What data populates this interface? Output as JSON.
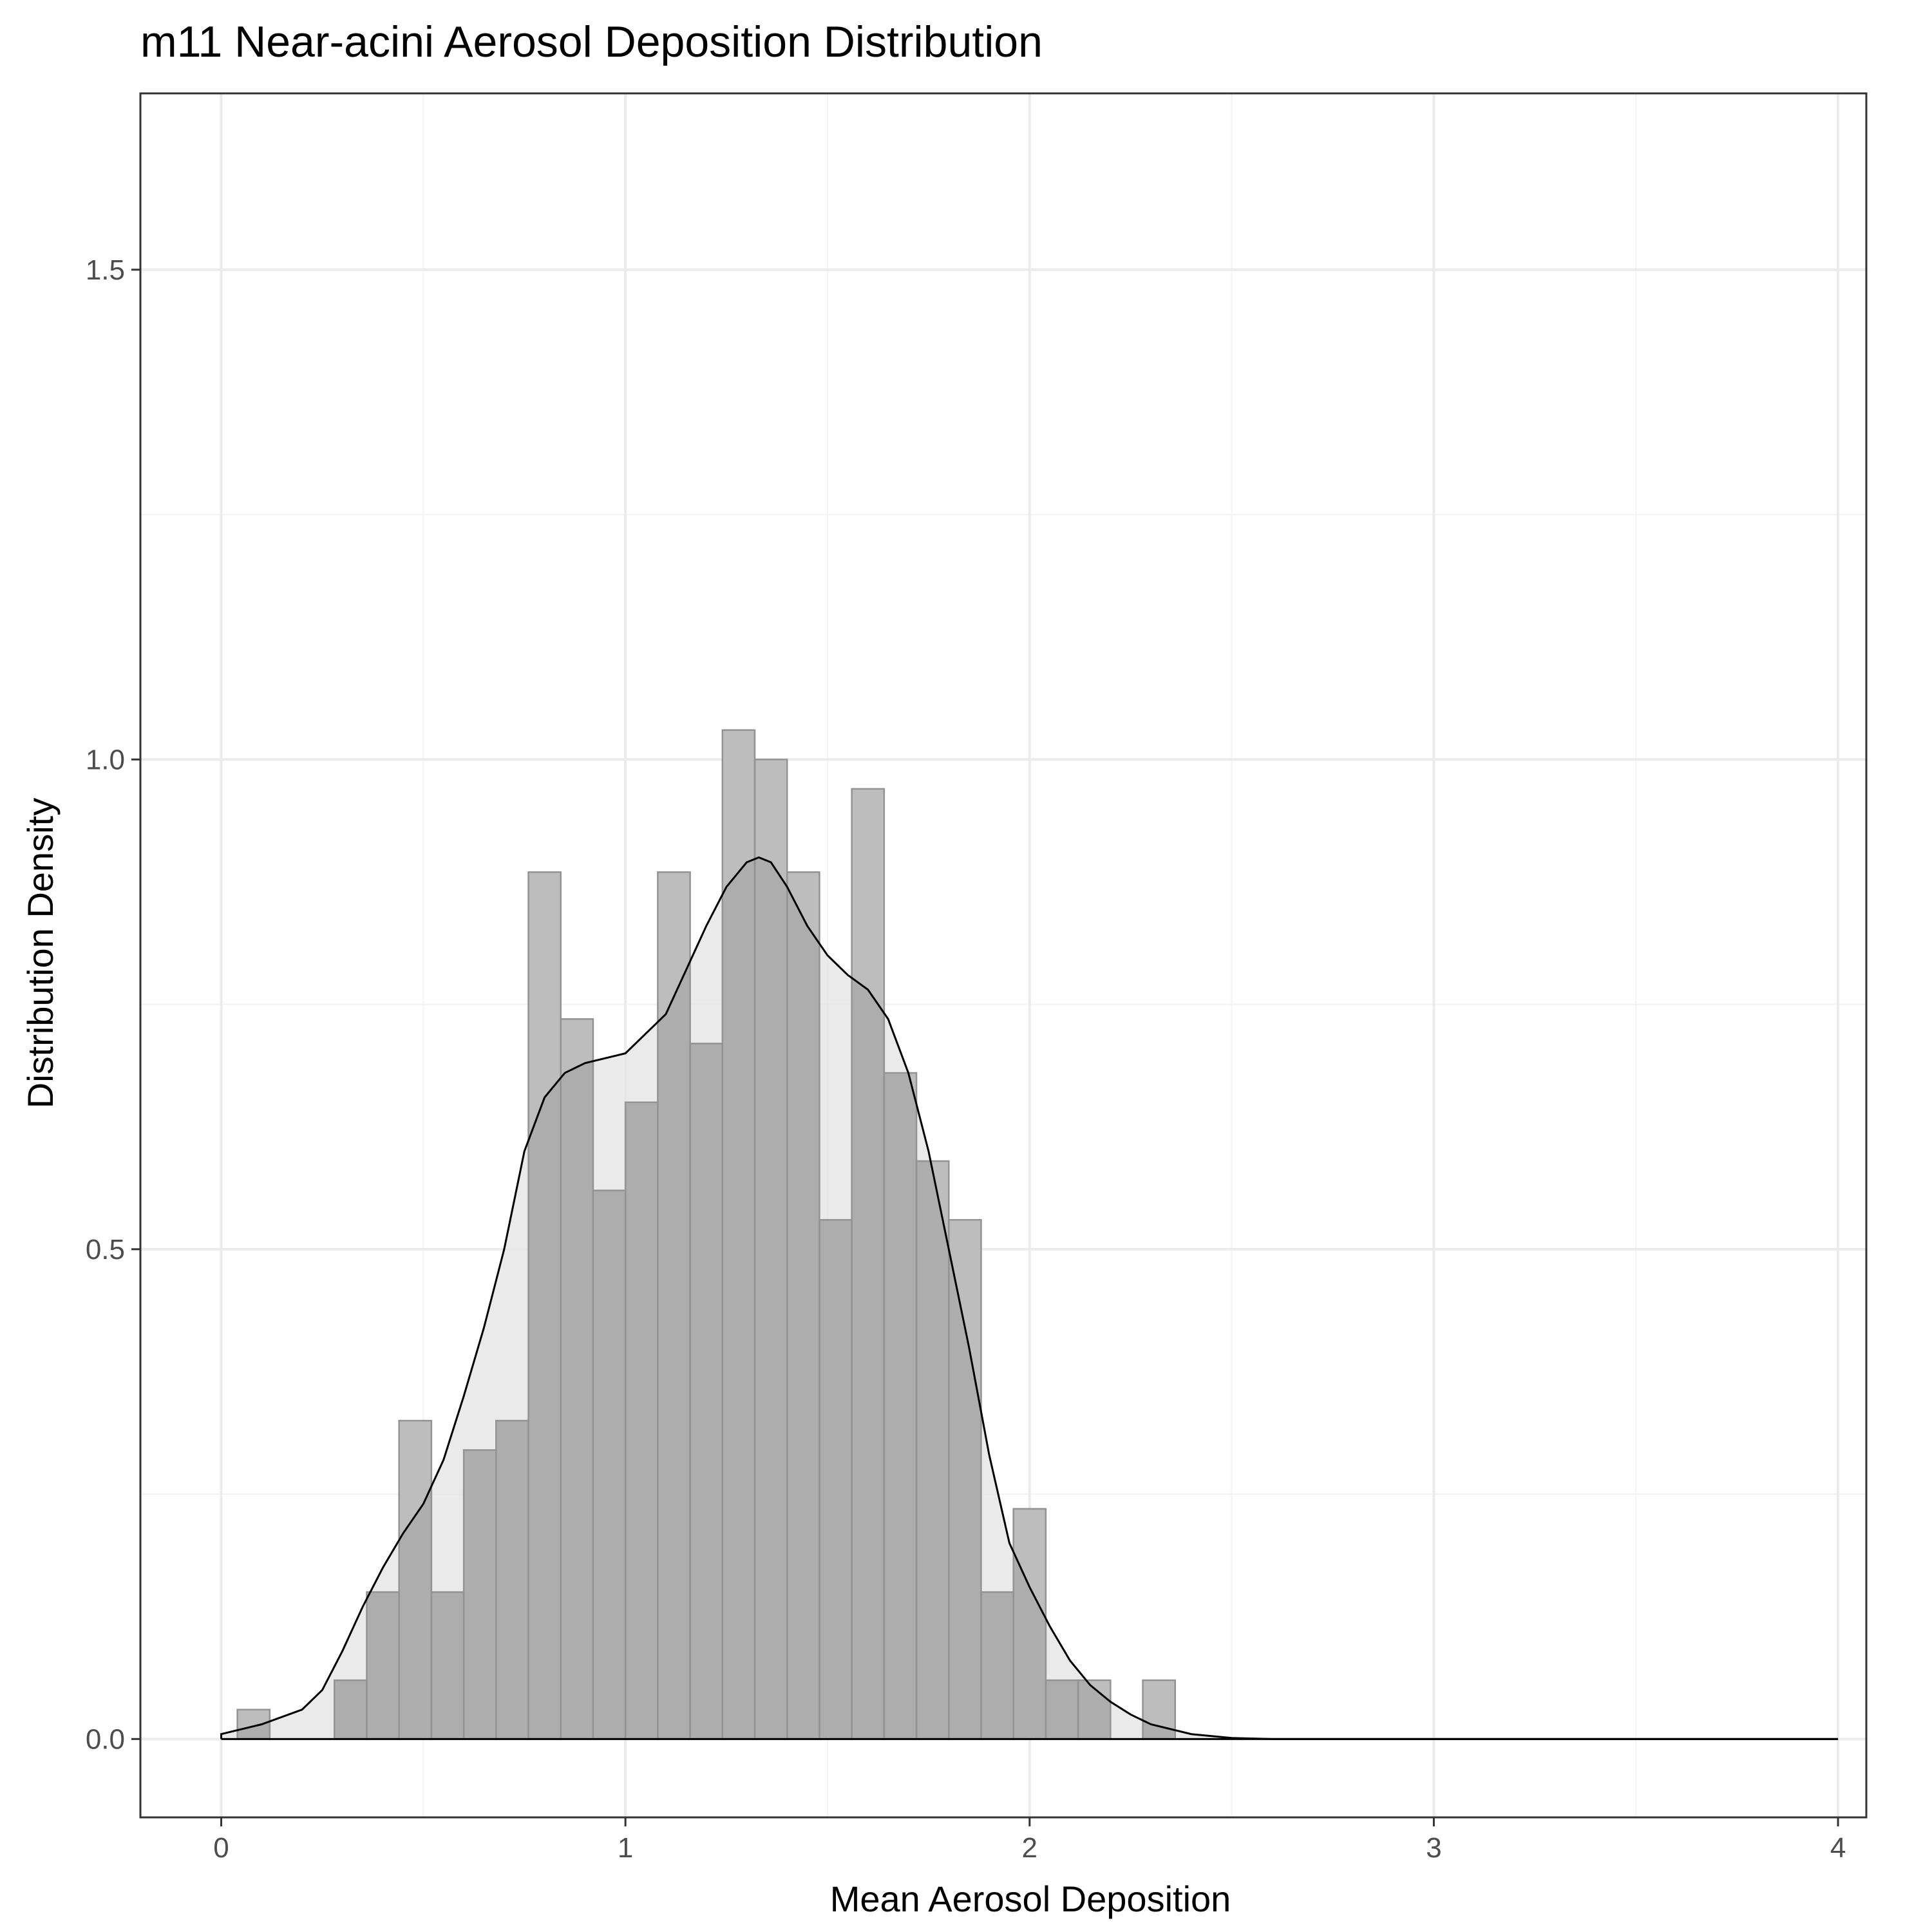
{
  "chart_data": {
    "type": "histogram",
    "title": "m11 Near-acini Aerosol Deposition Distribution",
    "xlabel": "Mean Aerosol Deposition",
    "ylabel": "Distribution Density",
    "xlim": [
      -0.2,
      4.07
    ],
    "ylim": [
      -0.08,
      1.68
    ],
    "x_ticks": [
      0,
      1,
      2,
      3,
      4
    ],
    "x_tick_labels": [
      "0",
      "1",
      "2",
      "3",
      "4"
    ],
    "y_ticks": [
      0.0,
      0.5,
      1.0,
      1.5
    ],
    "y_tick_labels": [
      "0.0",
      "0.5",
      "1.0",
      "1.5"
    ],
    "grid": true,
    "bin_width": 0.08,
    "bins": [
      {
        "x0": 0.04,
        "x1": 0.12,
        "density": 0.03
      },
      {
        "x0": 0.12,
        "x1": 0.2,
        "density": 0.0
      },
      {
        "x0": 0.2,
        "x1": 0.28,
        "density": 0.0
      },
      {
        "x0": 0.28,
        "x1": 0.36,
        "density": 0.06
      },
      {
        "x0": 0.36,
        "x1": 0.44,
        "density": 0.15
      },
      {
        "x0": 0.44,
        "x1": 0.52,
        "density": 0.325
      },
      {
        "x0": 0.52,
        "x1": 0.6,
        "density": 0.15
      },
      {
        "x0": 0.6,
        "x1": 0.68,
        "density": 0.295
      },
      {
        "x0": 0.68,
        "x1": 0.76,
        "density": 0.325
      },
      {
        "x0": 0.76,
        "x1": 0.84,
        "density": 0.885
      },
      {
        "x0": 0.84,
        "x1": 0.92,
        "density": 0.735
      },
      {
        "x0": 0.92,
        "x1": 1.0,
        "density": 0.56
      },
      {
        "x0": 1.0,
        "x1": 1.08,
        "density": 0.65
      },
      {
        "x0": 1.08,
        "x1": 1.16,
        "density": 0.885
      },
      {
        "x0": 1.16,
        "x1": 1.24,
        "density": 0.71
      },
      {
        "x0": 1.24,
        "x1": 1.32,
        "density": 1.03
      },
      {
        "x0": 1.32,
        "x1": 1.4,
        "density": 1.0
      },
      {
        "x0": 1.4,
        "x1": 1.48,
        "density": 0.885
      },
      {
        "x0": 1.48,
        "x1": 1.56,
        "density": 0.53
      },
      {
        "x0": 1.56,
        "x1": 1.64,
        "density": 0.97
      },
      {
        "x0": 1.64,
        "x1": 1.72,
        "density": 0.68
      },
      {
        "x0": 1.72,
        "x1": 1.8,
        "density": 0.59
      },
      {
        "x0": 1.8,
        "x1": 1.88,
        "density": 0.53
      },
      {
        "x0": 1.88,
        "x1": 1.96,
        "density": 0.15
      },
      {
        "x0": 1.96,
        "x1": 2.04,
        "density": 0.235
      },
      {
        "x0": 2.04,
        "x1": 2.12,
        "density": 0.06
      },
      {
        "x0": 2.12,
        "x1": 2.2,
        "density": 0.06
      },
      {
        "x0": 2.2,
        "x1": 2.28,
        "density": 0.0
      },
      {
        "x0": 2.28,
        "x1": 2.36,
        "density": 0.06
      }
    ],
    "density_curve": {
      "x": [
        0.0,
        0.1,
        0.2,
        0.25,
        0.3,
        0.35,
        0.4,
        0.45,
        0.5,
        0.55,
        0.6,
        0.65,
        0.7,
        0.75,
        0.8,
        0.85,
        0.9,
        0.95,
        1.0,
        1.05,
        1.1,
        1.15,
        1.2,
        1.25,
        1.3,
        1.33,
        1.36,
        1.4,
        1.45,
        1.5,
        1.55,
        1.6,
        1.65,
        1.7,
        1.75,
        1.8,
        1.85,
        1.9,
        1.95,
        2.0,
        2.05,
        2.1,
        2.15,
        2.2,
        2.25,
        2.3,
        2.4,
        2.5,
        2.6,
        2.8,
        3.0,
        3.5,
        4.0
      ],
      "y": [
        0.005,
        0.015,
        0.03,
        0.05,
        0.09,
        0.135,
        0.175,
        0.21,
        0.24,
        0.285,
        0.35,
        0.42,
        0.5,
        0.6,
        0.655,
        0.68,
        0.69,
        0.695,
        0.7,
        0.72,
        0.74,
        0.785,
        0.83,
        0.87,
        0.895,
        0.9,
        0.895,
        0.87,
        0.83,
        0.8,
        0.78,
        0.765,
        0.735,
        0.68,
        0.6,
        0.5,
        0.4,
        0.29,
        0.2,
        0.155,
        0.115,
        0.08,
        0.055,
        0.038,
        0.025,
        0.015,
        0.005,
        0.001,
        0.0,
        0.0,
        0.0,
        0.0,
        0.0
      ]
    },
    "colors": {
      "bar_fill": "#bdbdbd",
      "bar_stroke": "#939393",
      "density_fill": "#e3e3e3",
      "overlap_fill": "#adadad",
      "curve": "#000000",
      "grid_major": "#ebebeb",
      "grid_minor": "#f3f3f3",
      "panel_border": "#333333",
      "tick_label": "#4d4d4d"
    }
  }
}
